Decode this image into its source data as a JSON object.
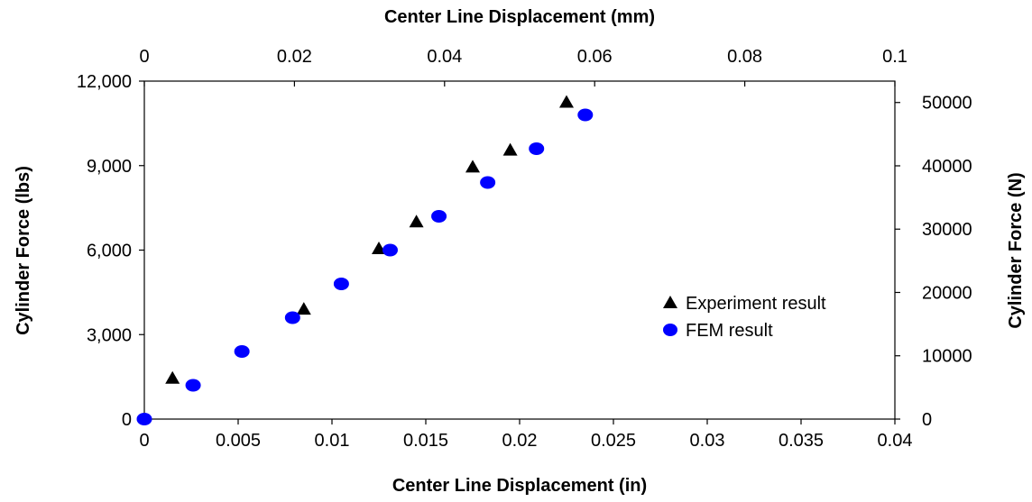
{
  "chart_data": {
    "type": "scatter",
    "title": "",
    "xlabel": "Center Line Displacement (in)",
    "ylabel": "Cylinder Force (lbs)",
    "x2label": "Center Line Displacement (mm)",
    "y2label": "Cylinder Force (N)",
    "xlim": [
      0,
      0.04
    ],
    "ylim": [
      0,
      12000
    ],
    "x2lim": [
      0,
      0.1
    ],
    "y2lim": [
      0,
      53378
    ],
    "xticks": [
      "0",
      "0.005",
      "0.01",
      "0.015",
      "0.02",
      "0.025",
      "0.03",
      "0.035",
      "0.04"
    ],
    "yticks": [
      "0",
      "3,000",
      "6,000",
      "9,000",
      "12,000"
    ],
    "x2ticks": [
      "0",
      "0.02",
      "0.04",
      "0.06",
      "0.08",
      "0.1"
    ],
    "y2ticks": [
      "0",
      "10000",
      "20000",
      "30000",
      "40000",
      "50000"
    ],
    "grid": false,
    "legend_position": "right",
    "series": [
      {
        "name": "Experiment result",
        "marker": "triangle",
        "color": "#000000",
        "x": [
          0.0015,
          0.0085,
          0.0125,
          0.0145,
          0.0175,
          0.0195,
          0.0225
        ],
        "y": [
          1450,
          3900,
          6050,
          7000,
          8950,
          9550,
          11250
        ]
      },
      {
        "name": "FEM result",
        "marker": "circle",
        "color": "#0000ff",
        "x": [
          0.0,
          0.0026,
          0.0052,
          0.0079,
          0.0105,
          0.0131,
          0.0157,
          0.0183,
          0.0209,
          0.0235
        ],
        "y": [
          0,
          1200,
          2400,
          3600,
          4800,
          6000,
          7200,
          8400,
          9600,
          10800
        ]
      }
    ]
  }
}
